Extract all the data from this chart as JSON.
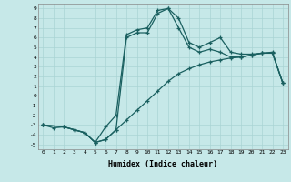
{
  "xlabel": "Humidex (Indice chaleur)",
  "xlim": [
    -0.5,
    23.5
  ],
  "ylim": [
    -5.5,
    9.5
  ],
  "xticks": [
    0,
    1,
    2,
    3,
    4,
    5,
    6,
    7,
    8,
    9,
    10,
    11,
    12,
    13,
    14,
    15,
    16,
    17,
    18,
    19,
    20,
    21,
    22,
    23
  ],
  "yticks": [
    -5,
    -4,
    -3,
    -2,
    -1,
    0,
    1,
    2,
    3,
    4,
    5,
    6,
    7,
    8,
    9
  ],
  "bg_color": "#c6e8e8",
  "grid_color": "#aad4d4",
  "line_color": "#1a6060",
  "line1_x": [
    0,
    2,
    3,
    4,
    5,
    6,
    7,
    8,
    9,
    10,
    11,
    12,
    13,
    14,
    15,
    16,
    17,
    18,
    19,
    20,
    21,
    22,
    23
  ],
  "line1_y": [
    -3.0,
    -3.2,
    -3.5,
    -3.8,
    -4.8,
    -4.5,
    -3.5,
    6.0,
    6.5,
    6.5,
    8.5,
    9.0,
    8.0,
    5.5,
    5.0,
    5.5,
    6.0,
    4.5,
    4.3,
    4.3,
    4.4,
    4.5,
    1.3
  ],
  "line2_x": [
    0,
    2,
    3,
    4,
    5,
    6,
    7,
    8,
    9,
    10,
    11,
    12,
    13,
    14,
    15,
    16,
    17,
    18,
    19,
    20,
    21,
    22,
    23
  ],
  "line2_y": [
    -3.0,
    -3.2,
    -3.5,
    -3.8,
    -4.8,
    -3.2,
    -2.0,
    6.3,
    6.8,
    7.0,
    8.8,
    9.0,
    7.0,
    5.0,
    4.5,
    4.8,
    4.5,
    4.0,
    4.0,
    4.2,
    4.4,
    4.4,
    1.3
  ],
  "line3_x": [
    0,
    1,
    2,
    3,
    4,
    5,
    6,
    7,
    8,
    9,
    10,
    11,
    12,
    13,
    14,
    15,
    16,
    17,
    18,
    19,
    20,
    21,
    22,
    23
  ],
  "line3_y": [
    -3.0,
    -3.3,
    -3.2,
    -3.5,
    -3.8,
    -4.8,
    -4.5,
    -3.5,
    -2.5,
    -1.5,
    -0.5,
    0.5,
    1.5,
    2.3,
    2.8,
    3.2,
    3.5,
    3.7,
    3.9,
    4.0,
    4.2,
    4.4,
    4.4,
    1.3
  ]
}
